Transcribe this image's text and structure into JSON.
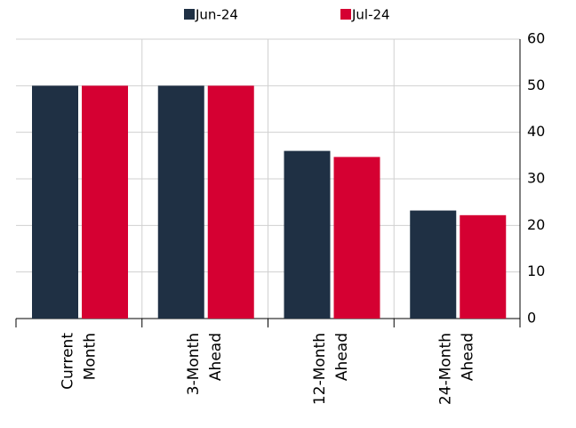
{
  "chart_data": {
    "type": "bar",
    "categories": [
      "Current Month",
      "3-Month Ahead",
      "12-Month Ahead",
      "24-Month Ahead"
    ],
    "series": [
      {
        "name": "Jun-24",
        "color": "#1f3044",
        "values": [
          50,
          50,
          36,
          23.2
        ]
      },
      {
        "name": "Jul-24",
        "color": "#d50032",
        "values": [
          50,
          50,
          34.7,
          22.2
        ]
      }
    ],
    "ylim": [
      0,
      60
    ],
    "yticks": [
      0,
      10,
      20,
      30,
      40,
      50,
      60
    ],
    "grid": true,
    "legend": "top"
  }
}
